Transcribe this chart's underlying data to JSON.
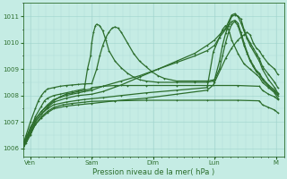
{
  "background_color": "#c5ece4",
  "plot_bg_color": "#c5ece4",
  "grid_color_major": "#9ed4cc",
  "grid_color_minor": "#b0ddd6",
  "line_color": "#2d6e2d",
  "title": "Pression niveau de la mer( hPa )",
  "ylabel_ticks": [
    1006,
    1007,
    1008,
    1009,
    1010,
    1011
  ],
  "ylim": [
    1005.7,
    1011.5
  ],
  "xlim": [
    0.0,
    4.25
  ],
  "xtick_positions": [
    0.12,
    1.12,
    2.12,
    3.12,
    4.12
  ],
  "xtick_labels": [
    "Ven",
    "Sam",
    "Dim",
    "Lun",
    "M"
  ],
  "series": [
    {
      "pts": [
        [
          0.0,
          1006.1
        ],
        [
          0.05,
          1006.4
        ],
        [
          0.12,
          1006.8
        ],
        [
          0.2,
          1007.1
        ],
        [
          0.3,
          1007.4
        ],
        [
          0.4,
          1007.6
        ],
        [
          0.5,
          1007.8
        ],
        [
          0.6,
          1007.95
        ],
        [
          0.7,
          1008.05
        ],
        [
          0.8,
          1008.1
        ],
        [
          0.9,
          1008.15
        ],
        [
          1.0,
          1008.2
        ],
        [
          1.1,
          1008.25
        ],
        [
          1.12,
          1008.3
        ],
        [
          1.3,
          1008.35
        ],
        [
          1.5,
          1008.38
        ],
        [
          1.7,
          1008.38
        ],
        [
          2.0,
          1008.38
        ],
        [
          2.5,
          1008.38
        ],
        [
          3.0,
          1008.38
        ],
        [
          3.5,
          1008.38
        ],
        [
          3.85,
          1008.35
        ],
        [
          3.9,
          1008.2
        ],
        [
          4.0,
          1008.05
        ],
        [
          4.1,
          1007.95
        ],
        [
          4.15,
          1007.85
        ]
      ],
      "lw": 0.9
    },
    {
      "pts": [
        [
          0.0,
          1006.0
        ],
        [
          0.05,
          1006.2
        ],
        [
          0.12,
          1006.5
        ],
        [
          0.2,
          1006.9
        ],
        [
          0.3,
          1007.2
        ],
        [
          0.4,
          1007.4
        ],
        [
          0.5,
          1007.55
        ],
        [
          0.65,
          1007.65
        ],
        [
          0.8,
          1007.7
        ],
        [
          1.0,
          1007.75
        ],
        [
          1.12,
          1007.78
        ],
        [
          1.5,
          1007.8
        ],
        [
          2.0,
          1007.82
        ],
        [
          2.5,
          1007.82
        ],
        [
          3.0,
          1007.82
        ],
        [
          3.5,
          1007.82
        ],
        [
          3.85,
          1007.8
        ],
        [
          3.9,
          1007.65
        ],
        [
          4.0,
          1007.55
        ],
        [
          4.1,
          1007.45
        ],
        [
          4.15,
          1007.35
        ]
      ],
      "lw": 0.9
    },
    {
      "pts": [
        [
          0.0,
          1006.1
        ],
        [
          0.05,
          1006.3
        ],
        [
          0.12,
          1006.6
        ],
        [
          0.2,
          1007.0
        ],
        [
          0.3,
          1007.3
        ],
        [
          0.4,
          1007.5
        ],
        [
          0.5,
          1007.65
        ],
        [
          0.7,
          1007.75
        ],
        [
          0.9,
          1007.82
        ],
        [
          1.0,
          1007.85
        ],
        [
          1.12,
          1007.88
        ],
        [
          1.3,
          1007.92
        ],
        [
          1.6,
          1008.0
        ],
        [
          2.0,
          1008.1
        ],
        [
          2.5,
          1008.2
        ],
        [
          3.0,
          1008.3
        ],
        [
          3.1,
          1009.65
        ],
        [
          3.2,
          1010.2
        ],
        [
          3.25,
          1010.5
        ],
        [
          3.3,
          1010.65
        ],
        [
          3.35,
          1010.5
        ],
        [
          3.4,
          1010.1
        ],
        [
          3.5,
          1009.6
        ],
        [
          3.6,
          1009.2
        ],
        [
          3.7,
          1009.0
        ],
        [
          3.8,
          1008.8
        ],
        [
          3.85,
          1008.7
        ],
        [
          3.9,
          1008.5
        ],
        [
          4.0,
          1008.3
        ],
        [
          4.1,
          1008.1
        ],
        [
          4.15,
          1007.9
        ]
      ],
      "lw": 0.9
    },
    {
      "pts": [
        [
          0.0,
          1006.05
        ],
        [
          0.05,
          1006.25
        ],
        [
          0.12,
          1006.55
        ],
        [
          0.2,
          1006.9
        ],
        [
          0.3,
          1007.15
        ],
        [
          0.4,
          1007.35
        ],
        [
          0.5,
          1007.5
        ],
        [
          0.7,
          1007.6
        ],
        [
          0.9,
          1007.65
        ],
        [
          1.12,
          1007.7
        ],
        [
          1.5,
          1007.8
        ],
        [
          2.0,
          1007.9
        ],
        [
          2.5,
          1008.05
        ],
        [
          3.0,
          1008.2
        ],
        [
          3.1,
          1008.4
        ],
        [
          3.12,
          1008.5
        ],
        [
          3.3,
          1009.4
        ],
        [
          3.4,
          1009.8
        ],
        [
          3.5,
          1010.1
        ],
        [
          3.6,
          1010.3
        ],
        [
          3.65,
          1010.4
        ],
        [
          3.7,
          1010.3
        ],
        [
          3.75,
          1010.0
        ],
        [
          3.8,
          1009.8
        ],
        [
          3.85,
          1009.7
        ],
        [
          3.9,
          1009.5
        ],
        [
          4.0,
          1009.2
        ],
        [
          4.1,
          1009.0
        ],
        [
          4.15,
          1008.8
        ]
      ],
      "lw": 0.9
    },
    {
      "pts": [
        [
          0.0,
          1006.1
        ],
        [
          0.05,
          1006.4
        ],
        [
          0.12,
          1006.7
        ],
        [
          0.2,
          1007.1
        ],
        [
          0.3,
          1007.4
        ],
        [
          0.4,
          1007.65
        ],
        [
          0.5,
          1007.85
        ],
        [
          0.7,
          1008.0
        ],
        [
          0.9,
          1008.1
        ],
        [
          1.0,
          1008.15
        ],
        [
          1.12,
          1008.2
        ],
        [
          1.3,
          1008.35
        ],
        [
          1.6,
          1008.55
        ],
        [
          1.9,
          1008.75
        ],
        [
          2.2,
          1009.0
        ],
        [
          2.5,
          1009.25
        ],
        [
          2.8,
          1009.5
        ],
        [
          3.0,
          1009.7
        ],
        [
          3.12,
          1009.9
        ],
        [
          3.2,
          1010.2
        ],
        [
          3.3,
          1010.5
        ],
        [
          3.35,
          1010.7
        ],
        [
          3.4,
          1011.0
        ],
        [
          3.45,
          1011.05
        ],
        [
          3.5,
          1011.0
        ],
        [
          3.55,
          1010.9
        ],
        [
          3.6,
          1010.5
        ],
        [
          3.65,
          1010.2
        ],
        [
          3.7,
          1010.0
        ],
        [
          3.75,
          1009.8
        ],
        [
          3.8,
          1009.6
        ],
        [
          3.85,
          1009.4
        ],
        [
          3.9,
          1009.1
        ],
        [
          4.0,
          1008.8
        ],
        [
          4.1,
          1008.5
        ],
        [
          4.15,
          1008.3
        ]
      ],
      "lw": 0.9
    },
    {
      "pts": [
        [
          0.0,
          1006.0
        ],
        [
          0.05,
          1006.3
        ],
        [
          0.12,
          1006.6
        ],
        [
          0.2,
          1007.0
        ],
        [
          0.3,
          1007.3
        ],
        [
          0.4,
          1007.55
        ],
        [
          0.5,
          1007.75
        ],
        [
          0.7,
          1007.9
        ],
        [
          0.9,
          1008.0
        ],
        [
          1.12,
          1008.05
        ],
        [
          1.3,
          1008.15
        ],
        [
          1.6,
          1008.4
        ],
        [
          1.9,
          1008.7
        ],
        [
          2.2,
          1009.0
        ],
        [
          2.5,
          1009.3
        ],
        [
          2.8,
          1009.6
        ],
        [
          3.0,
          1009.9
        ],
        [
          3.12,
          1010.1
        ],
        [
          3.2,
          1010.3
        ],
        [
          3.3,
          1010.55
        ],
        [
          3.35,
          1010.8
        ],
        [
          3.4,
          1011.05
        ],
        [
          3.45,
          1011.1
        ],
        [
          3.5,
          1011.0
        ],
        [
          3.55,
          1010.75
        ],
        [
          3.6,
          1010.45
        ],
        [
          3.65,
          1010.15
        ],
        [
          3.7,
          1009.9
        ],
        [
          3.8,
          1009.5
        ],
        [
          3.85,
          1009.3
        ],
        [
          3.9,
          1009.0
        ],
        [
          4.0,
          1008.6
        ],
        [
          4.1,
          1008.3
        ],
        [
          4.15,
          1008.1
        ]
      ],
      "lw": 0.9
    },
    {
      "pts": [
        [
          0.0,
          1006.0
        ],
        [
          0.05,
          1006.3
        ],
        [
          0.12,
          1006.7
        ],
        [
          0.2,
          1007.2
        ],
        [
          0.3,
          1007.6
        ],
        [
          0.35,
          1007.8
        ],
        [
          0.4,
          1007.9
        ],
        [
          0.5,
          1008.0
        ],
        [
          0.6,
          1008.05
        ],
        [
          0.7,
          1008.1
        ],
        [
          0.8,
          1008.15
        ],
        [
          0.9,
          1008.2
        ],
        [
          1.0,
          1008.25
        ],
        [
          1.05,
          1009.0
        ],
        [
          1.1,
          1009.5
        ],
        [
          1.12,
          1010.0
        ],
        [
          1.15,
          1010.4
        ],
        [
          1.18,
          1010.65
        ],
        [
          1.2,
          1010.7
        ],
        [
          1.25,
          1010.65
        ],
        [
          1.3,
          1010.45
        ],
        [
          1.35,
          1010.1
        ],
        [
          1.4,
          1009.7
        ],
        [
          1.5,
          1009.3
        ],
        [
          1.6,
          1009.05
        ],
        [
          1.7,
          1008.85
        ],
        [
          1.8,
          1008.7
        ],
        [
          1.9,
          1008.6
        ],
        [
          2.0,
          1008.55
        ],
        [
          2.2,
          1008.5
        ],
        [
          2.5,
          1008.5
        ],
        [
          2.8,
          1008.5
        ],
        [
          3.0,
          1008.5
        ],
        [
          3.1,
          1008.55
        ],
        [
          3.12,
          1008.6
        ],
        [
          3.2,
          1009.0
        ],
        [
          3.25,
          1009.5
        ],
        [
          3.3,
          1010.0
        ],
        [
          3.35,
          1010.4
        ],
        [
          3.4,
          1010.7
        ],
        [
          3.45,
          1010.8
        ],
        [
          3.5,
          1010.65
        ],
        [
          3.55,
          1010.3
        ],
        [
          3.6,
          1009.9
        ],
        [
          3.65,
          1009.6
        ],
        [
          3.7,
          1009.3
        ],
        [
          3.75,
          1009.1
        ],
        [
          3.8,
          1008.9
        ],
        [
          3.85,
          1008.8
        ],
        [
          3.9,
          1008.6
        ],
        [
          4.0,
          1008.35
        ],
        [
          4.1,
          1008.15
        ],
        [
          4.15,
          1008.0
        ]
      ],
      "lw": 0.9
    },
    {
      "pts": [
        [
          0.0,
          1006.15
        ],
        [
          0.05,
          1006.5
        ],
        [
          0.12,
          1007.0
        ],
        [
          0.2,
          1007.5
        ],
        [
          0.25,
          1007.8
        ],
        [
          0.3,
          1008.0
        ],
        [
          0.35,
          1008.15
        ],
        [
          0.4,
          1008.25
        ],
        [
          0.5,
          1008.3
        ],
        [
          0.6,
          1008.35
        ],
        [
          0.7,
          1008.38
        ],
        [
          0.8,
          1008.4
        ],
        [
          0.9,
          1008.42
        ],
        [
          1.0,
          1008.44
        ],
        [
          1.12,
          1008.45
        ],
        [
          1.2,
          1009.0
        ],
        [
          1.25,
          1009.5
        ],
        [
          1.3,
          1009.9
        ],
        [
          1.35,
          1010.2
        ],
        [
          1.4,
          1010.4
        ],
        [
          1.45,
          1010.55
        ],
        [
          1.5,
          1010.6
        ],
        [
          1.55,
          1010.55
        ],
        [
          1.6,
          1010.4
        ],
        [
          1.7,
          1010.0
        ],
        [
          1.8,
          1009.6
        ],
        [
          1.9,
          1009.3
        ],
        [
          2.0,
          1009.1
        ],
        [
          2.1,
          1008.9
        ],
        [
          2.2,
          1008.75
        ],
        [
          2.3,
          1008.65
        ],
        [
          2.5,
          1008.55
        ],
        [
          2.8,
          1008.55
        ],
        [
          3.0,
          1008.55
        ],
        [
          3.12,
          1008.6
        ],
        [
          3.2,
          1009.3
        ],
        [
          3.25,
          1009.9
        ],
        [
          3.3,
          1010.35
        ],
        [
          3.35,
          1010.65
        ],
        [
          3.4,
          1010.8
        ],
        [
          3.45,
          1010.85
        ],
        [
          3.5,
          1010.75
        ],
        [
          3.55,
          1010.4
        ],
        [
          3.6,
          1010.0
        ],
        [
          3.65,
          1009.65
        ],
        [
          3.7,
          1009.35
        ],
        [
          3.75,
          1009.15
        ],
        [
          3.8,
          1008.95
        ],
        [
          3.85,
          1008.85
        ],
        [
          3.9,
          1008.65
        ],
        [
          4.0,
          1008.4
        ],
        [
          4.1,
          1008.2
        ],
        [
          4.15,
          1008.05
        ]
      ],
      "lw": 0.9
    }
  ]
}
